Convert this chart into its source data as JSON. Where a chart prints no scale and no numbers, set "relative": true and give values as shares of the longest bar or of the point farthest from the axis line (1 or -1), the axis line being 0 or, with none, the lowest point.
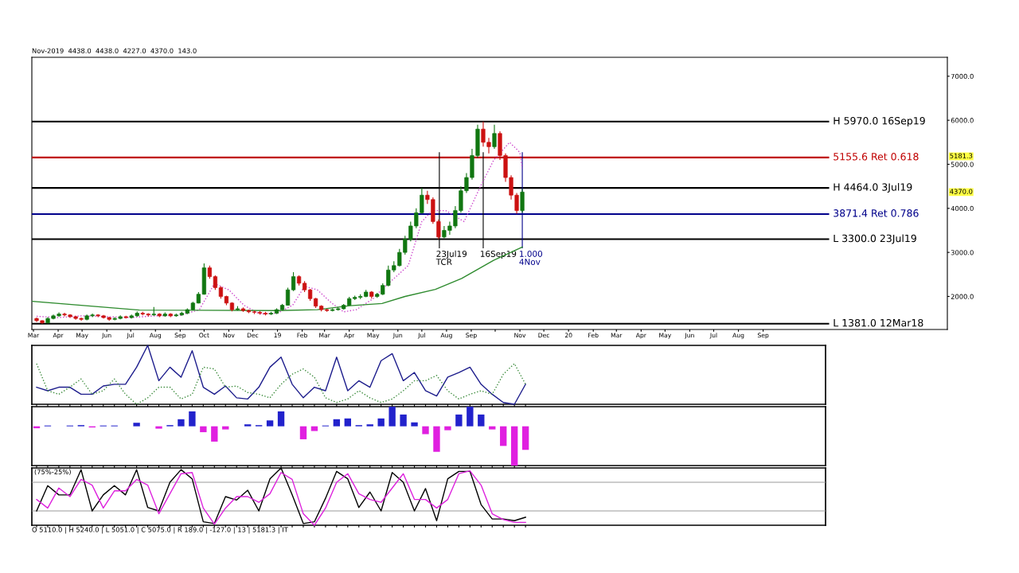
{
  "chart_data": [
    {
      "type": "candlestick",
      "x": [
        "2018-03-05",
        "2018-03-12",
        "2018-03-19",
        "2018-03-26",
        "2018-04-02",
        "2018-04-09",
        "2018-04-16",
        "2018-04-23",
        "2018-04-30",
        "2018-05-07",
        "2018-05-14",
        "2018-05-21",
        "2018-05-28",
        "2018-06-04",
        "2018-06-11",
        "2018-06-18",
        "2018-06-25",
        "2018-07-02",
        "2018-07-09",
        "2018-07-16",
        "2018-07-23",
        "2018-07-30",
        "2018-08-06",
        "2018-08-13",
        "2018-08-20",
        "2018-08-27",
        "2018-09-03",
        "2018-09-10",
        "2018-09-17",
        "2018-09-24",
        "2018-10-01",
        "2018-10-08",
        "2018-10-15",
        "2018-10-22",
        "2018-10-29",
        "2018-11-05",
        "2018-11-12",
        "2018-11-19",
        "2018-11-26",
        "2018-12-03",
        "2018-12-10",
        "2018-12-17",
        "2018-12-24",
        "2018-12-31",
        "2019-01-07",
        "2019-01-14",
        "2019-01-21",
        "2019-01-28",
        "2019-02-04",
        "2019-02-11",
        "2019-02-18",
        "2019-02-25",
        "2019-03-04",
        "2019-03-11",
        "2019-03-18",
        "2019-03-25",
        "2019-04-01",
        "2019-04-08",
        "2019-04-15",
        "2019-04-22",
        "2019-04-29",
        "2019-05-06",
        "2019-05-13",
        "2019-05-20",
        "2019-05-27",
        "2019-06-03",
        "2019-06-10",
        "2019-06-17",
        "2019-06-24",
        "2019-07-01",
        "2019-07-08",
        "2019-07-15",
        "2019-07-22",
        "2019-07-29",
        "2019-08-05",
        "2019-08-12",
        "2019-08-19",
        "2019-08-26",
        "2019-09-02",
        "2019-09-09",
        "2019-09-16",
        "2019-09-23",
        "2019-09-30",
        "2019-10-07",
        "2019-10-14",
        "2019-10-21",
        "2019-10-28",
        "2019-11-04"
      ],
      "ohlc": [
        [
          1500,
          1520,
          1420,
          1450
        ],
        [
          1450,
          1460,
          1381,
          1400
        ],
        [
          1400,
          1530,
          1390,
          1500
        ],
        [
          1500,
          1590,
          1480,
          1560
        ],
        [
          1560,
          1640,
          1540,
          1600
        ],
        [
          1600,
          1630,
          1550,
          1580
        ],
        [
          1580,
          1600,
          1510,
          1540
        ],
        [
          1540,
          1560,
          1470,
          1500
        ],
        [
          1500,
          1520,
          1450,
          1480
        ],
        [
          1480,
          1590,
          1460,
          1560
        ],
        [
          1560,
          1610,
          1530,
          1580
        ],
        [
          1580,
          1600,
          1530,
          1560
        ],
        [
          1560,
          1580,
          1500,
          1520
        ],
        [
          1520,
          1540,
          1450,
          1480
        ],
        [
          1480,
          1530,
          1460,
          1500
        ],
        [
          1500,
          1570,
          1480,
          1540
        ],
        [
          1540,
          1560,
          1500,
          1520
        ],
        [
          1520,
          1590,
          1500,
          1560
        ],
        [
          1560,
          1660,
          1540,
          1620
        ],
        [
          1620,
          1650,
          1570,
          1600
        ],
        [
          1600,
          1620,
          1550,
          1580
        ],
        [
          1580,
          1760,
          1560,
          1600
        ],
        [
          1600,
          1620,
          1530,
          1560
        ],
        [
          1560,
          1640,
          1540,
          1600
        ],
        [
          1600,
          1620,
          1530,
          1560
        ],
        [
          1560,
          1610,
          1540,
          1580
        ],
        [
          1580,
          1650,
          1560,
          1620
        ],
        [
          1620,
          1730,
          1600,
          1700
        ],
        [
          1700,
          1880,
          1690,
          1850
        ],
        [
          1850,
          2100,
          1840,
          2050
        ],
        [
          2050,
          2750,
          2040,
          2650
        ],
        [
          2650,
          2700,
          2400,
          2450
        ],
        [
          2450,
          2480,
          2150,
          2200
        ],
        [
          2200,
          2230,
          1950,
          2000
        ],
        [
          2000,
          2020,
          1800,
          1850
        ],
        [
          1850,
          1870,
          1660,
          1700
        ],
        [
          1700,
          1780,
          1680,
          1720
        ],
        [
          1720,
          1750,
          1650,
          1680
        ],
        [
          1680,
          1700,
          1620,
          1650
        ],
        [
          1650,
          1680,
          1600,
          1640
        ],
        [
          1640,
          1670,
          1590,
          1620
        ],
        [
          1620,
          1650,
          1570,
          1600
        ],
        [
          1600,
          1650,
          1580,
          1620
        ],
        [
          1620,
          1730,
          1600,
          1700
        ],
        [
          1700,
          1830,
          1690,
          1800
        ],
        [
          1800,
          2200,
          1790,
          2150
        ],
        [
          2150,
          2550,
          2120,
          2450
        ],
        [
          2450,
          2480,
          2250,
          2300
        ],
        [
          2300,
          2350,
          2100,
          2150
        ],
        [
          2150,
          2170,
          1900,
          1950
        ],
        [
          1950,
          1970,
          1740,
          1780
        ],
        [
          1780,
          1800,
          1660,
          1700
        ],
        [
          1700,
          1720,
          1650,
          1680
        ],
        [
          1680,
          1730,
          1660,
          1700
        ],
        [
          1700,
          1750,
          1680,
          1720
        ],
        [
          1720,
          1830,
          1700,
          1800
        ],
        [
          1800,
          1990,
          1790,
          1950
        ],
        [
          1950,
          2020,
          1920,
          1980
        ],
        [
          1980,
          2050,
          1940,
          2000
        ],
        [
          2000,
          2150,
          1980,
          2100
        ],
        [
          2100,
          2120,
          1950,
          2000
        ],
        [
          2000,
          2080,
          1970,
          2050
        ],
        [
          2050,
          2300,
          2030,
          2250
        ],
        [
          2250,
          2700,
          2230,
          2600
        ],
        [
          2600,
          2800,
          2550,
          2700
        ],
        [
          2700,
          3080,
          2680,
          3000
        ],
        [
          3000,
          3380,
          2950,
          3300
        ],
        [
          3300,
          3700,
          3250,
          3600
        ],
        [
          3600,
          4000,
          3550,
          3900
        ],
        [
          3900,
          4464,
          3880,
          4300
        ],
        [
          4300,
          4400,
          4100,
          4200
        ],
        [
          4200,
          4250,
          3650,
          3700
        ],
        [
          3700,
          3750,
          3300,
          3350
        ],
        [
          3350,
          3600,
          3320,
          3500
        ],
        [
          3500,
          3700,
          3400,
          3600
        ],
        [
          3600,
          4050,
          3550,
          3950
        ],
        [
          3950,
          4500,
          3900,
          4400
        ],
        [
          4400,
          4800,
          4350,
          4700
        ],
        [
          4700,
          5350,
          4650,
          5200
        ],
        [
          5200,
          5900,
          5150,
          5800
        ],
        [
          5800,
          5970,
          5400,
          5500
        ],
        [
          5500,
          5600,
          5250,
          5400
        ],
        [
          5400,
          5900,
          5350,
          5700
        ],
        [
          5700,
          5750,
          5100,
          5200
        ],
        [
          5200,
          5250,
          4600,
          4700
        ],
        [
          4700,
          4750,
          4200,
          4300
        ],
        [
          4300,
          4350,
          3880,
          3950
        ],
        [
          3950,
          4438,
          3900,
          4370
        ]
      ],
      "colors": [
        "#cc1111",
        "#cc1111",
        "#117711",
        "#117711",
        "#117711",
        "#cc1111",
        "#cc1111",
        "#cc1111",
        "#cc1111",
        "#117711",
        "#117711",
        "#cc1111",
        "#cc1111",
        "#cc1111",
        "#117711",
        "#117711",
        "#cc1111",
        "#117711",
        "#117711",
        "#cc1111",
        "#cc1111",
        "#117711",
        "#cc1111",
        "#117711",
        "#cc1111",
        "#117711",
        "#117711",
        "#117711",
        "#117711",
        "#117711",
        "#117711",
        "#cc1111",
        "#cc1111",
        "#cc1111",
        "#cc1111",
        "#cc1111",
        "#117711",
        "#cc1111",
        "#cc1111",
        "#cc1111",
        "#cc1111",
        "#cc1111",
        "#117711",
        "#117711",
        "#117711",
        "#117711",
        "#117711",
        "#cc1111",
        "#cc1111",
        "#cc1111",
        "#cc1111",
        "#cc1111",
        "#cc1111",
        "#117711",
        "#117711",
        "#117711",
        "#117711",
        "#117711",
        "#117711",
        "#117711",
        "#cc1111",
        "#117711",
        "#117711",
        "#117711",
        "#117711",
        "#117711",
        "#117711",
        "#117711",
        "#117711",
        "#117711",
        "#cc1111",
        "#cc1111",
        "#cc1111",
        "#117711",
        "#117711",
        "#117711",
        "#117711",
        "#117711",
        "#117711",
        "#117711",
        "#cc1111",
        "#cc1111",
        "#117711",
        "#cc1111",
        "#cc1111",
        "#cc1111",
        "#cc1111",
        "#117711"
      ],
      "series": [
        {
          "type": "line",
          "color": "#cc44cc",
          "line_style": "dotted",
          "x": [
            "2018-03-05",
            "2018-04-01",
            "2018-05-01",
            "2018-06-01",
            "2018-07-01",
            "2018-08-01",
            "2018-09-01",
            "2018-09-25",
            "2018-10-14",
            "2018-11-01",
            "2018-11-20",
            "2018-12-10",
            "2019-01-01",
            "2019-01-20",
            "2019-02-04",
            "2019-02-20",
            "2019-03-10",
            "2019-03-25",
            "2019-04-10",
            "2019-05-01",
            "2019-05-12",
            "2019-06-14",
            "2019-07-01",
            "2019-07-14",
            "2019-07-31",
            "2019-08-23",
            "2019-09-12",
            "2019-09-29",
            "2019-10-19",
            "2019-11-01",
            "2019-11-04"
          ],
          "values": [
            1550,
            1520,
            1560,
            1540,
            1520,
            1560,
            1570,
            1700,
            2290,
            2150,
            1800,
            1600,
            1620,
            1800,
            2230,
            2150,
            1850,
            1650,
            1700,
            1950,
            2160,
            2700,
            3700,
            3950,
            3950,
            3700,
            4480,
            5090,
            5500,
            5270,
            4910
          ]
        },
        {
          "type": "line",
          "color": "#2e8b2e",
          "line_style": "solid",
          "x": [
            "2018-02-28",
            "2018-07-12",
            "2019-01-01",
            "2019-02-20",
            "2019-04-02",
            "2019-05-12",
            "2019-06-10",
            "2019-07-18",
            "2019-08-20",
            "2019-09-29",
            "2019-11-04"
          ],
          "values": [
            1890,
            1690,
            1680,
            1700,
            1790,
            1840,
            2000,
            2160,
            2410,
            2820,
            3120
          ]
        }
      ],
      "xlim": [
        "2018-02-27",
        "2021-04-20"
      ],
      "xticks": [
        {
          "value": "2018-03-01",
          "label": "Mar"
        },
        {
          "value": "2018-04-01",
          "label": "Apr"
        },
        {
          "value": "2018-05-01",
          "label": "May"
        },
        {
          "value": "2018-06-01",
          "label": "Jun"
        },
        {
          "value": "2018-07-01",
          "label": "Jul"
        },
        {
          "value": "2018-08-01",
          "label": "Aug"
        },
        {
          "value": "2018-09-01",
          "label": "Sep"
        },
        {
          "value": "2018-10-01",
          "label": "Oct"
        },
        {
          "value": "2018-11-01",
          "label": "Nov"
        },
        {
          "value": "2018-12-01",
          "label": "Dec"
        },
        {
          "value": "2019-01-01",
          "label": "19"
        },
        {
          "value": "2019-02-01",
          "label": "Feb"
        },
        {
          "value": "2019-03-01",
          "label": "Mar"
        },
        {
          "value": "2019-04-01",
          "label": "Apr"
        },
        {
          "value": "2019-05-01",
          "label": "May"
        },
        {
          "value": "2019-06-01",
          "label": "Jun"
        },
        {
          "value": "2019-07-01",
          "label": "Jul"
        },
        {
          "value": "2019-08-01",
          "label": "Aug"
        },
        {
          "value": "2019-09-01",
          "label": "Sep"
        },
        {
          "value": "2019-10-01",
          "label": null
        },
        {
          "value": "2019-11-01",
          "label": "Nov"
        },
        {
          "value": "2019-12-01",
          "label": "Dec"
        },
        {
          "value": "2020-01-01",
          "label": "20"
        },
        {
          "value": "2020-02-01",
          "label": "Feb"
        },
        {
          "value": "2020-03-01",
          "label": "Mar"
        },
        {
          "value": "2020-04-01",
          "label": "Apr"
        },
        {
          "value": "2020-05-01",
          "label": "May"
        },
        {
          "value": "2020-06-01",
          "label": "Jun"
        },
        {
          "value": "2020-07-01",
          "label": "Jul"
        },
        {
          "value": "2020-08-01",
          "label": "Aug"
        },
        {
          "value": "2020-09-01",
          "label": "Sep"
        }
      ],
      "ylim": [
        1250,
        7430
      ],
      "yticks": [
        {
          "value": 2000,
          "label": "2000.0"
        },
        {
          "value": 3000,
          "label": "3000.0"
        },
        {
          "value": 4000,
          "label": "4000.0"
        },
        {
          "value": 5000,
          "label": "5000.0"
        },
        {
          "value": 6000,
          "label": "6000.0"
        },
        {
          "value": 7000,
          "label": "7000.0"
        }
      ],
      "ref_lines": [
        {
          "axis": "y",
          "value": 5970,
          "label": "H 5970.0 16Sep19",
          "color": "#000000"
        },
        {
          "axis": "y",
          "value": 5155.6,
          "label": "5155.6 Ret 0.618",
          "color": "#c00000"
        },
        {
          "axis": "y",
          "value": 4464,
          "label": "H 4464.0 3Jul19",
          "color": "#000000"
        },
        {
          "axis": "y",
          "value": 3871.4,
          "label": "3871.4 Ret 0.786",
          "color": "#00008b"
        },
        {
          "axis": "y",
          "value": 3300,
          "label": "L 3300.0 23Jul19",
          "color": "#000000"
        },
        {
          "axis": "y",
          "value": 1381,
          "label": "L 1381.0 12Mar18",
          "color": "#000000"
        },
        {
          "axis": "x",
          "value": "2019-07-23",
          "label": "23Jul19\nTCR",
          "color": "#000000"
        },
        {
          "axis": "x",
          "value": "2019-09-16",
          "label": "16Sep19",
          "color": "#000000"
        },
        {
          "axis": "x",
          "value": "2019-11-04",
          "label": "1.000\n4Nov",
          "color": "#00008b"
        }
      ],
      "annotations": [
        "Nov-2019  4438.0  4438.0  4227.0  4370.0  143.0",
        {
          "text": "5181.3",
          "y": 5181.3
        },
        {
          "text": "4370.0",
          "y": 4370
        }
      ],
      "grid": false
    },
    {
      "type": "line",
      "relative": true,
      "categories": [
        null,
        null,
        null,
        null,
        null,
        null,
        null,
        null,
        null,
        null,
        null,
        null,
        null,
        null,
        null,
        null,
        null,
        null,
        null,
        null,
        null,
        null,
        null,
        null,
        null,
        null,
        null,
        null,
        null,
        null,
        null,
        null,
        null,
        null,
        null,
        null,
        null,
        null,
        null,
        null,
        null,
        null,
        null,
        null,
        null
      ],
      "series": [
        {
          "color": "#1c1c8c",
          "line_style": "solid",
          "values": [
            0.29,
            0.23,
            0.29,
            0.29,
            0.17,
            0.17,
            0.31,
            0.34,
            0.34,
            0.63,
            1.0,
            0.4,
            0.63,
            0.46,
            0.91,
            0.29,
            0.17,
            0.31,
            0.11,
            0.09,
            0.29,
            0.63,
            0.8,
            0.34,
            0.11,
            0.29,
            0.23,
            0.8,
            0.23,
            0.4,
            0.29,
            0.74,
            0.86,
            0.4,
            0.54,
            0.23,
            0.14,
            0.46,
            0.54,
            0.63,
            0.34,
            0.17,
            0.03,
            0.0,
            0.34
          ]
        },
        {
          "color": "#3a8a3a",
          "line_style": "dotted",
          "values": [
            0.69,
            0.23,
            0.17,
            0.29,
            0.43,
            0.17,
            0.23,
            0.43,
            0.17,
            0.0,
            0.11,
            0.29,
            0.29,
            0.09,
            0.17,
            0.63,
            0.6,
            0.29,
            0.31,
            0.2,
            0.17,
            0.11,
            0.34,
            0.51,
            0.6,
            0.46,
            0.11,
            0.03,
            0.09,
            0.23,
            0.11,
            0.03,
            0.09,
            0.23,
            0.4,
            0.4,
            0.49,
            0.23,
            0.09,
            0.17,
            0.23,
            0.17,
            0.51,
            0.69,
            0.34
          ]
        }
      ]
    },
    {
      "type": "bar",
      "relative": true,
      "categories": [
        null,
        null,
        null,
        null,
        null,
        null,
        null,
        null,
        null,
        null,
        null,
        null,
        null,
        null,
        null,
        null,
        null,
        null,
        null,
        null,
        null,
        null,
        null,
        null,
        null,
        null,
        null,
        null,
        null,
        null,
        null,
        null,
        null,
        null,
        null,
        null,
        null,
        null,
        null,
        null,
        null,
        null,
        null,
        null,
        null
      ],
      "values": [
        -0.05,
        0.02,
        0.0,
        0.02,
        0.03,
        -0.03,
        0.02,
        0.02,
        0.0,
        0.09,
        0.0,
        -0.06,
        0.03,
        0.18,
        0.38,
        -0.15,
        -0.39,
        -0.08,
        0.0,
        0.05,
        0.03,
        0.15,
        0.38,
        0.0,
        -0.33,
        -0.12,
        0.02,
        0.18,
        0.2,
        0.03,
        0.05,
        0.2,
        0.5,
        0.3,
        0.1,
        -0.2,
        -0.65,
        -0.1,
        0.3,
        0.5,
        0.3,
        -0.08,
        -0.5,
        -1.0,
        -0.6
      ],
      "colors": [
        "#e020e0",
        "#2222cc",
        "#2222cc",
        "#2222cc",
        "#2222cc",
        "#e020e0",
        "#2222cc",
        "#2222cc",
        "#2222cc",
        "#2222cc",
        "#2222cc",
        "#e020e0",
        "#2222cc",
        "#2222cc",
        "#2222cc",
        "#e020e0",
        "#e020e0",
        "#e020e0",
        "#2222cc",
        "#2222cc",
        "#2222cc",
        "#2222cc",
        "#2222cc",
        "#2222cc",
        "#e020e0",
        "#e020e0",
        "#2222cc",
        "#2222cc",
        "#2222cc",
        "#2222cc",
        "#2222cc",
        "#2222cc",
        "#2222cc",
        "#2222cc",
        "#2222cc",
        "#e020e0",
        "#e020e0",
        "#e020e0",
        "#2222cc",
        "#2222cc",
        "#2222cc",
        "#e020e0",
        "#e020e0",
        "#e020e0",
        "#e020e0"
      ]
    },
    {
      "type": "line",
      "relative": true,
      "categories": [
        null,
        null,
        null,
        null,
        null,
        null,
        null,
        null,
        null,
        null,
        null,
        null,
        null,
        null,
        null,
        null,
        null,
        null,
        null,
        null,
        null,
        null,
        null,
        null,
        null,
        null,
        null,
        null,
        null,
        null,
        null,
        null,
        null,
        null,
        null,
        null,
        null,
        null,
        null,
        null,
        null,
        null,
        null,
        null,
        null
      ],
      "series": [
        {
          "color": "#000000",
          "line_style": "solid",
          "values": [
            0.25,
            0.69,
            0.53,
            0.53,
            0.97,
            0.25,
            0.53,
            0.69,
            0.53,
            0.97,
            0.31,
            0.25,
            0.75,
            0.97,
            0.81,
            0.06,
            0.03,
            0.5,
            0.44,
            0.61,
            0.25,
            0.81,
            1.0,
            0.53,
            0.03,
            0.06,
            0.47,
            0.94,
            0.81,
            0.31,
            0.58,
            0.25,
            0.92,
            0.75,
            0.25,
            0.64,
            0.08,
            0.81,
            0.94,
            0.94,
            0.36,
            0.11,
            0.11,
            0.08,
            0.14
          ]
        },
        {
          "color": "#dd22dd",
          "line_style": "solid",
          "values": [
            0.45,
            0.3,
            0.65,
            0.5,
            0.8,
            0.7,
            0.3,
            0.6,
            0.6,
            0.8,
            0.7,
            0.2,
            0.55,
            0.9,
            0.92,
            0.3,
            0.02,
            0.3,
            0.5,
            0.5,
            0.4,
            0.55,
            0.92,
            0.8,
            0.2,
            0.0,
            0.3,
            0.75,
            0.9,
            0.55,
            0.45,
            0.4,
            0.65,
            0.9,
            0.45,
            0.45,
            0.3,
            0.45,
            0.9,
            0.95,
            0.7,
            0.2,
            0.1,
            0.05,
            0.05
          ]
        }
      ],
      "ref_lines": [
        {
          "axis": "y",
          "value": 0.75,
          "color": "#999999"
        },
        {
          "axis": "y",
          "value": 0.25,
          "color": "#999999"
        }
      ],
      "annotations": [
        "(75%-25%)",
        "O 5110.0 | H 5240.0 | L 5051.0 | C 5075.0 | R 189.0 | -127.0 | 13 | 5181.3 | IT"
      ]
    }
  ]
}
